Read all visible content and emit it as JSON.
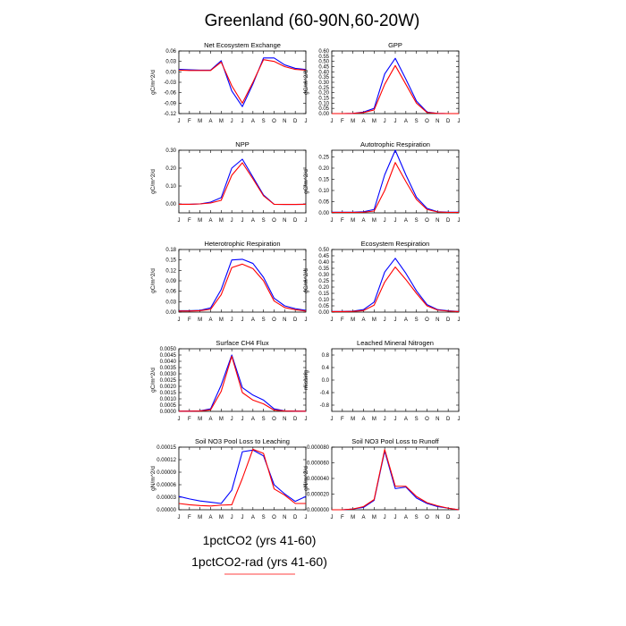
{
  "title": "Greenland (60-90N,60-20W)",
  "colors": {
    "series_1": "#0000ff",
    "series_2": "#ff0000",
    "axis": "#000000"
  },
  "legend": [
    {
      "label": "1pctCO2 (yrs 41-60)",
      "color": "#0000ff"
    },
    {
      "label": "1pctCO2-rad (yrs 41-60)",
      "color": "#ff0000"
    }
  ],
  "chart_data": [
    {
      "type": "line",
      "title": "Net Ecosystem Exchange",
      "ylabel": "gC/m^2/d",
      "categories": [
        "J",
        "F",
        "M",
        "A",
        "M",
        "J",
        "J",
        "A",
        "S",
        "O",
        "N",
        "D",
        "J"
      ],
      "ylim": [
        -0.12,
        0.06
      ],
      "yticks": [
        "-0.12",
        "-0.09",
        "-0.06",
        "-0.03",
        "0.00",
        "0.03",
        "0.06"
      ],
      "series": [
        {
          "values": [
            0.007,
            0.006,
            0.005,
            0.005,
            0.032,
            -0.055,
            -0.1,
            -0.035,
            0.04,
            0.04,
            0.02,
            0.01,
            0.007
          ]
        },
        {
          "values": [
            0.005,
            0.004,
            0.004,
            0.004,
            0.028,
            -0.04,
            -0.09,
            -0.03,
            0.035,
            0.03,
            0.015,
            0.007,
            0.005
          ]
        }
      ]
    },
    {
      "type": "line",
      "title": "GPP",
      "ylabel": "gC/m^2/d",
      "categories": [
        "J",
        "F",
        "M",
        "A",
        "M",
        "J",
        "J",
        "A",
        "S",
        "O",
        "N",
        "D",
        "J"
      ],
      "ylim": [
        0,
        0.6
      ],
      "yticks": [
        "0.00",
        "0.05",
        "0.10",
        "0.15",
        "0.20",
        "0.25",
        "0.30",
        "0.35",
        "0.40",
        "0.45",
        "0.50",
        "0.55",
        "0.60"
      ],
      "series": [
        {
          "values": [
            0,
            0,
            0.002,
            0.015,
            0.05,
            0.38,
            0.53,
            0.33,
            0.12,
            0.015,
            0.002,
            0,
            0
          ]
        },
        {
          "values": [
            0,
            0,
            0.002,
            0.01,
            0.035,
            0.28,
            0.46,
            0.28,
            0.1,
            0.01,
            0.002,
            0,
            0
          ]
        }
      ]
    },
    {
      "type": "line",
      "title": "NPP",
      "ylabel": "gC/m^2/d",
      "categories": [
        "J",
        "F",
        "M",
        "A",
        "M",
        "J",
        "J",
        "A",
        "S",
        "O",
        "N",
        "D",
        "J"
      ],
      "ylim": [
        -0.05,
        0.3
      ],
      "yticks": [
        "0.00",
        "0.10",
        "0.20",
        "0.30"
      ],
      "series": [
        {
          "values": [
            -0.002,
            -0.002,
            0,
            0.01,
            0.035,
            0.2,
            0.25,
            0.15,
            0.05,
            -0.002,
            -0.003,
            -0.003,
            -0.002
          ]
        },
        {
          "values": [
            -0.002,
            -0.002,
            0,
            0.005,
            0.02,
            0.16,
            0.23,
            0.14,
            0.045,
            -0.002,
            -0.003,
            -0.003,
            -0.002
          ]
        }
      ]
    },
    {
      "type": "line",
      "title": "Autotrophic Respiration",
      "ylabel": "gC/m^2/d",
      "categories": [
        "J",
        "F",
        "M",
        "A",
        "M",
        "J",
        "J",
        "A",
        "S",
        "O",
        "N",
        "D",
        "J"
      ],
      "ylim": [
        0,
        0.28
      ],
      "yticks": [
        "0.00",
        "0.05",
        "0.10",
        "0.15",
        "0.20",
        "0.25"
      ],
      "series": [
        {
          "values": [
            0.003,
            0.003,
            0.003,
            0.005,
            0.015,
            0.17,
            0.28,
            0.17,
            0.07,
            0.02,
            0.005,
            0.003,
            0.003
          ]
        },
        {
          "values": [
            0.002,
            0.002,
            0.002,
            0.003,
            0.008,
            0.1,
            0.225,
            0.14,
            0.06,
            0.015,
            0.004,
            0.002,
            0.002
          ]
        }
      ]
    },
    {
      "type": "line",
      "title": "Heterotrophic Respiration",
      "ylabel": "gC/m^2/d",
      "categories": [
        "J",
        "F",
        "M",
        "A",
        "M",
        "J",
        "J",
        "A",
        "S",
        "O",
        "N",
        "D",
        "J"
      ],
      "ylim": [
        0,
        0.18
      ],
      "yticks": [
        "0.00",
        "0.03",
        "0.06",
        "0.09",
        "0.12",
        "0.15",
        "0.18"
      ],
      "series": [
        {
          "values": [
            0.004,
            0.004,
            0.005,
            0.012,
            0.065,
            0.15,
            0.152,
            0.14,
            0.1,
            0.04,
            0.018,
            0.01,
            0.005
          ]
        },
        {
          "values": [
            0.003,
            0.003,
            0.004,
            0.008,
            0.05,
            0.128,
            0.138,
            0.125,
            0.09,
            0.032,
            0.013,
            0.007,
            0.003
          ]
        }
      ]
    },
    {
      "type": "line",
      "title": "Ecosystem Respiration",
      "ylabel": "gC/m^2/d",
      "categories": [
        "J",
        "F",
        "M",
        "A",
        "M",
        "J",
        "J",
        "A",
        "S",
        "O",
        "N",
        "D",
        "J"
      ],
      "ylim": [
        0,
        0.5
      ],
      "yticks": [
        "0.00",
        "0.05",
        "0.10",
        "0.15",
        "0.20",
        "0.25",
        "0.30",
        "0.35",
        "0.40",
        "0.45",
        "0.50"
      ],
      "series": [
        {
          "values": [
            0.005,
            0.005,
            0.008,
            0.02,
            0.08,
            0.32,
            0.43,
            0.31,
            0.17,
            0.06,
            0.02,
            0.01,
            0.005
          ]
        },
        {
          "values": [
            0.004,
            0.004,
            0.006,
            0.012,
            0.055,
            0.24,
            0.36,
            0.26,
            0.15,
            0.05,
            0.016,
            0.008,
            0.004
          ]
        }
      ]
    },
    {
      "type": "line",
      "title": "Surface CH4 Flux",
      "ylabel": "gC/m^2/d",
      "categories": [
        "J",
        "F",
        "M",
        "A",
        "M",
        "J",
        "J",
        "A",
        "S",
        "O",
        "N",
        "D",
        "J"
      ],
      "ylim": [
        0,
        0.005
      ],
      "yticks": [
        "0.0000",
        "0.0005",
        "0.0010",
        "0.0015",
        "0.0020",
        "0.0025",
        "0.0030",
        "0.0035",
        "0.0040",
        "0.0045",
        "0.0050"
      ],
      "series": [
        {
          "values": [
            1e-05,
            2e-05,
            4e-05,
            0.0002,
            0.0021,
            0.0045,
            0.0019,
            0.0013,
            0.0009,
            0.0002,
            4e-05,
            2e-05,
            1e-05
          ]
        },
        {
          "values": [
            1e-05,
            1e-05,
            3e-05,
            0.00012,
            0.0016,
            0.0044,
            0.0015,
            0.0009,
            0.0006,
            0.0001,
            3e-05,
            1e-05,
            1e-05
          ]
        }
      ]
    },
    {
      "type": "line",
      "title": "Leached Mineral Nitrogen",
      "ylabel": "missing",
      "categories": [
        "J",
        "F",
        "M",
        "A",
        "M",
        "J",
        "J",
        "A",
        "S",
        "O",
        "N",
        "D",
        "J"
      ],
      "ylim": [
        -1,
        1
      ],
      "yticks": [
        "-0.8",
        "-0.4",
        "0.0",
        "0.4",
        "0.8"
      ],
      "series": []
    },
    {
      "type": "line",
      "title": "Soil NO3 Pool Loss to Leaching",
      "ylabel": "gN/m^2/d",
      "categories": [
        "J",
        "F",
        "M",
        "A",
        "M",
        "J",
        "J",
        "A",
        "S",
        "O",
        "N",
        "D",
        "J"
      ],
      "ylim": [
        0,
        0.00015
      ],
      "yticks": [
        "0.00000",
        "0.00003",
        "0.00006",
        "0.00009",
        "0.00012",
        "0.00015"
      ],
      "series": [
        {
          "values": [
            3.2e-05,
            2.6e-05,
            2.1e-05,
            1.8e-05,
            1.5e-05,
            4.7e-05,
            0.000139,
            0.000143,
            0.000129,
            6e-05,
            3.8e-05,
            2e-05,
            3.2e-05
          ]
        },
        {
          "values": [
            1.5e-05,
            1.2e-05,
            1e-05,
            9e-06,
            1.1e-05,
            1.2e-05,
            7.5e-05,
            0.000145,
            0.000135,
            5e-05,
            3.5e-05,
            1.5e-05,
            1.5e-05
          ]
        }
      ]
    },
    {
      "type": "line",
      "title": "Soil NO3 Pool Loss to Runoff",
      "ylabel": "gN/m^2/d",
      "categories": [
        "J",
        "F",
        "M",
        "A",
        "M",
        "J",
        "J",
        "A",
        "S",
        "O",
        "N",
        "D",
        "J"
      ],
      "ylim": [
        0,
        8e-05
      ],
      "yticks": [
        "0.000000",
        "0.000020",
        "0.000040",
        "0.000060",
        "0.000080"
      ],
      "series": [
        {
          "values": [
            0,
            0,
            1e-06,
            3e-06,
            1.2e-05,
            7.5e-05,
            2.7e-05,
            2.9e-05,
            1.5e-05,
            8e-06,
            4e-06,
            2e-06,
            0
          ]
        },
        {
          "values": [
            0,
            0,
            1e-06,
            4e-06,
            1.3e-05,
            7.7e-05,
            3e-05,
            3e-05,
            1.7e-05,
            9e-06,
            5e-06,
            2e-06,
            0
          ]
        }
      ]
    }
  ]
}
